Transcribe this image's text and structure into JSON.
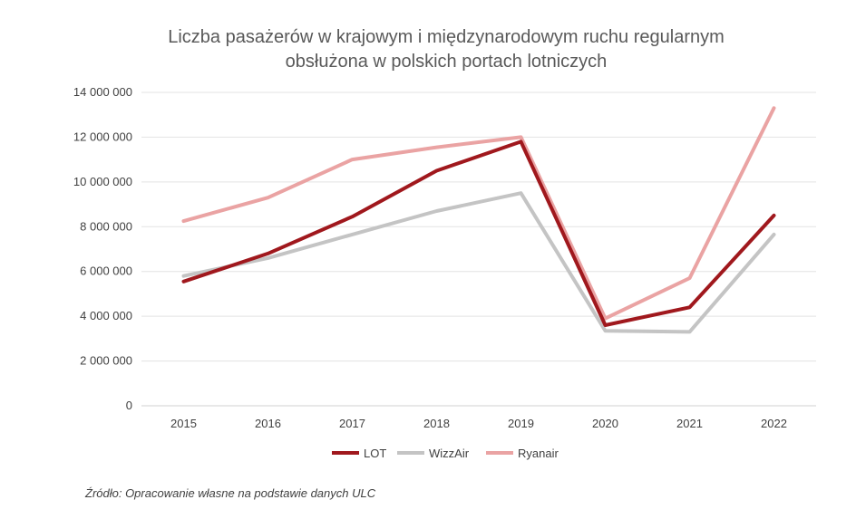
{
  "chart_data": {
    "type": "line",
    "title_lines": [
      "Liczba pasażerów w krajowym i międzynarodowym ruchu regularnym",
      "obsłużona w polskich portach lotniczych"
    ],
    "xlabel": "",
    "ylabel": "",
    "x": [
      "2015",
      "2016",
      "2017",
      "2018",
      "2019",
      "2020",
      "2021",
      "2022"
    ],
    "ylim": [
      0,
      14000000
    ],
    "yticks": [
      0,
      2000000,
      4000000,
      6000000,
      8000000,
      10000000,
      12000000,
      14000000
    ],
    "ytick_labels": [
      "0",
      "2 000 000",
      "4 000 000",
      "6 000 000",
      "8 000 000",
      "10 000 000",
      "12 000 000",
      "14 000 000"
    ],
    "grid": true,
    "legend_position": "bottom",
    "series": [
      {
        "name": "Ryanair",
        "color": "#eaa3a3",
        "values": [
          8250000,
          9300000,
          11000000,
          11550000,
          12000000,
          3900000,
          5700000,
          13300000
        ]
      },
      {
        "name": "WizzAir",
        "color": "#c4c4c4",
        "values": [
          5800000,
          6600000,
          7650000,
          8700000,
          9500000,
          3350000,
          3300000,
          7650000
        ]
      },
      {
        "name": "LOT",
        "color": "#a0181d",
        "values": [
          5550000,
          6800000,
          8450000,
          10500000,
          11800000,
          3600000,
          4400000,
          8500000
        ]
      }
    ],
    "legend_order": [
      "LOT",
      "WizzAir",
      "Ryanair"
    ]
  },
  "source_note": "Źródło: Opracowanie własne na podstawie danych ULC"
}
